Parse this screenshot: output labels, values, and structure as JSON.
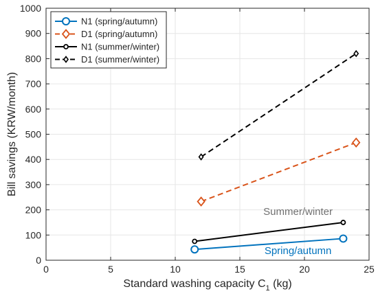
{
  "chart_data": {
    "type": "line",
    "xlabel": "Standard washing capacity C",
    "xlabel_subscript": "1",
    "xlabel_unit": " (kg)",
    "ylabel": "Bill savings (KRW/month)",
    "xlim": [
      0,
      25
    ],
    "ylim": [
      0,
      1000
    ],
    "xticks": [
      0,
      5,
      10,
      15,
      20,
      25
    ],
    "yticks": [
      0,
      100,
      200,
      300,
      400,
      500,
      600,
      700,
      800,
      900,
      1000
    ],
    "grid": true,
    "legend_position": "top-left",
    "series": [
      {
        "name": "N1 (spring/autumn)",
        "x": [
          11.5,
          23
        ],
        "y": [
          43,
          86
        ],
        "color": "#0072BD",
        "dash": "solid",
        "marker": "circle"
      },
      {
        "name": "D1 (spring/autumn)",
        "x": [
          12,
          24
        ],
        "y": [
          233,
          467
        ],
        "color": "#D95319",
        "dash": "dashed",
        "marker": "diamond"
      },
      {
        "name": "N1 (summer/winter)",
        "x": [
          11.5,
          23
        ],
        "y": [
          75,
          150
        ],
        "color": "#000000",
        "dash": "solid",
        "marker": "dot"
      },
      {
        "name": "D1 (summer/winter)",
        "x": [
          12,
          24
        ],
        "y": [
          410,
          820
        ],
        "color": "#000000",
        "dash": "dashed",
        "marker": "small-diamond"
      }
    ],
    "annotations": [
      {
        "text": "Summer/winter",
        "x": 19.5,
        "y": 180,
        "color": "#707070"
      },
      {
        "text": "Spring/autumn",
        "x": 19.5,
        "y": 25,
        "color": "#0072BD"
      }
    ]
  }
}
